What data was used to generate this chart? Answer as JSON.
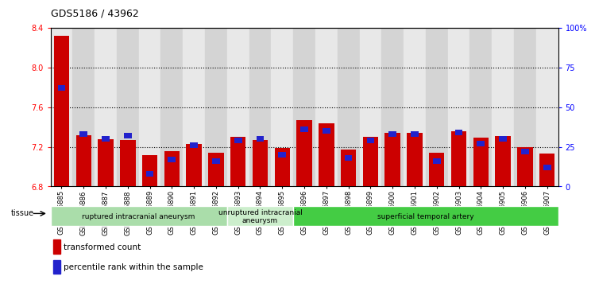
{
  "title": "GDS5186 / 43962",
  "samples": [
    "GSM1306885",
    "GSM1306886",
    "GSM1306887",
    "GSM1306888",
    "GSM1306889",
    "GSM1306890",
    "GSM1306891",
    "GSM1306892",
    "GSM1306893",
    "GSM1306894",
    "GSM1306895",
    "GSM1306896",
    "GSM1306897",
    "GSM1306898",
    "GSM1306899",
    "GSM1306900",
    "GSM1306901",
    "GSM1306902",
    "GSM1306903",
    "GSM1306904",
    "GSM1306905",
    "GSM1306906",
    "GSM1306907"
  ],
  "transformed_count": [
    8.32,
    7.32,
    7.28,
    7.27,
    7.12,
    7.16,
    7.23,
    7.14,
    7.3,
    7.27,
    7.19,
    7.47,
    7.44,
    7.17,
    7.3,
    7.34,
    7.34,
    7.14,
    7.36,
    7.29,
    7.31,
    7.2,
    7.13
  ],
  "percentile_rank": [
    62,
    33,
    30,
    32,
    8,
    17,
    26,
    16,
    29,
    30,
    20,
    36,
    35,
    18,
    29,
    33,
    33,
    16,
    34,
    27,
    30,
    22,
    12
  ],
  "ylim_left": [
    6.8,
    8.4
  ],
  "ylim_right": [
    0,
    100
  ],
  "y_ticks_left": [
    6.8,
    7.2,
    7.6,
    8.0,
    8.4
  ],
  "y_ticks_right": [
    0,
    25,
    50,
    75,
    100
  ],
  "y_tick_right_labels": [
    "0",
    "25",
    "50",
    "75",
    "100%"
  ],
  "bar_color_red": "#cc0000",
  "bar_color_blue": "#2222cc",
  "col_bg_even": "#e8e8e8",
  "col_bg_odd": "#d4d4d4",
  "groups": [
    {
      "label": "ruptured intracranial aneurysm",
      "start": 0,
      "end": 8,
      "color": "#aaddaa"
    },
    {
      "label": "unruptured intracranial\naneurysm",
      "start": 8,
      "end": 11,
      "color": "#cceecc"
    },
    {
      "label": "superficial temporal artery",
      "start": 11,
      "end": 23,
      "color": "#44cc44"
    }
  ],
  "legend_red": "transformed count",
  "legend_blue": "percentile rank within the sample",
  "tissue_label": "tissue",
  "bar_width": 0.7,
  "blue_bar_width": 0.35,
  "base_value": 6.8,
  "grid_lines": [
    7.2,
    7.6,
    8.0
  ],
  "title_fontsize": 9,
  "tick_fontsize": 7,
  "xtick_fontsize": 6
}
